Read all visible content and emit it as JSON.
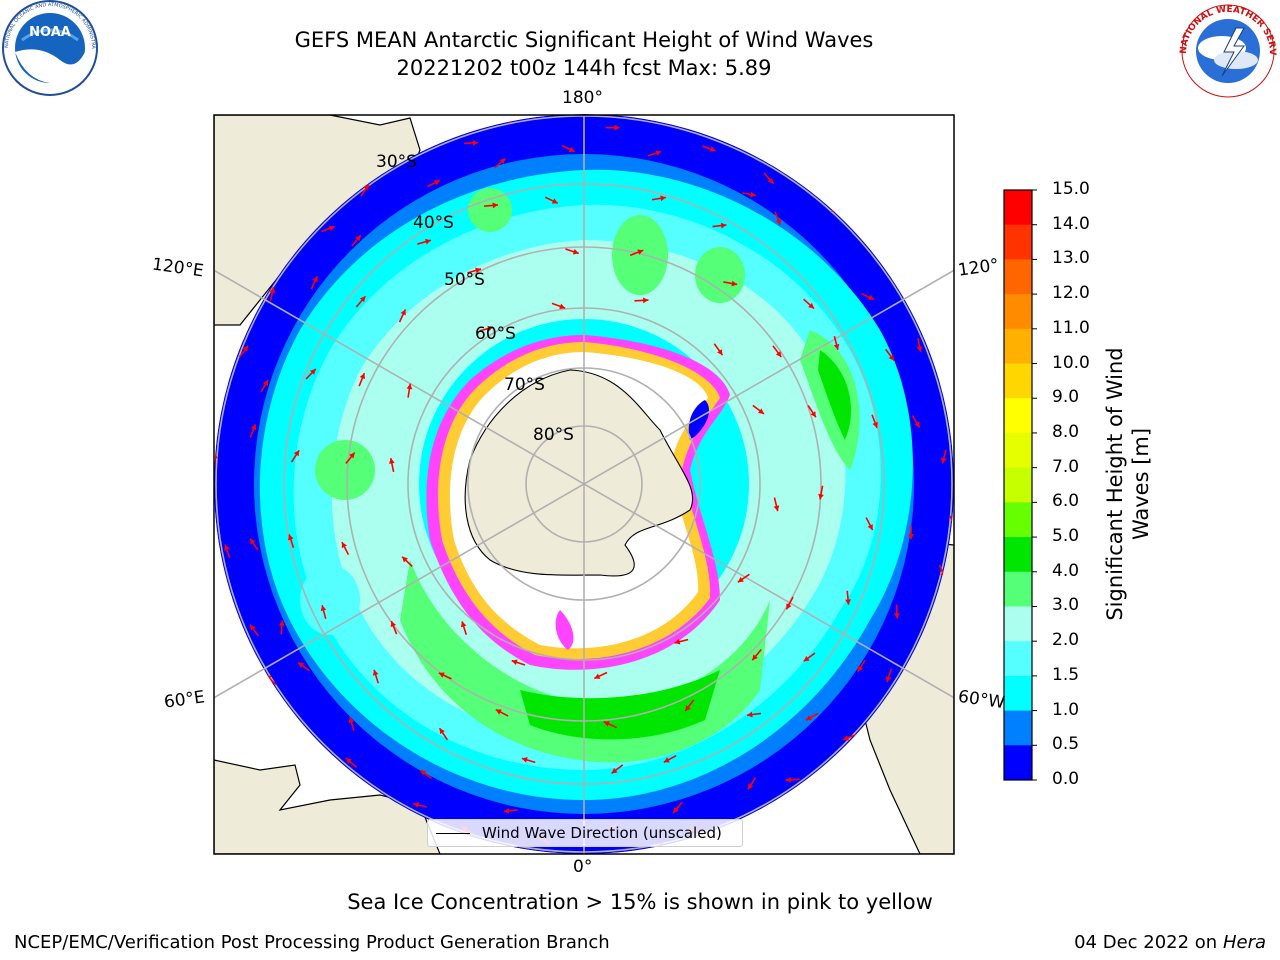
{
  "title": {
    "line1": "GEFS MEAN Antarctic Significant Height of Wind Waves",
    "line2": "20221202 t00z 144h fcst   Max: 5.89"
  },
  "logos": {
    "left": "NOAA",
    "left_ring": "NATIONAL OCEANIC AND ATMOSPHERIC ADMINISTRATION · U.S. DEPARTMENT OF COMMERCE",
    "right_ring": "NATIONAL WEATHER SERVICE"
  },
  "map": {
    "longitude_labels": {
      "top": "180°",
      "bottom": "0°",
      "upper_left": "120°E",
      "lower_left": "60°E",
      "upper_right": "120°",
      "lower_right": "60°W"
    },
    "latitude_labels": [
      "30°S",
      "40°S",
      "50°S",
      "60°S",
      "70°S",
      "80°S"
    ],
    "arrow_color": "#ff0000",
    "land_color": "#efebd9"
  },
  "colorbar": {
    "ticks": [
      "15.0",
      "14.0",
      "13.0",
      "12.0",
      "11.0",
      "10.0",
      "9.0",
      "8.0",
      "7.0",
      "6.0",
      "5.0",
      "4.0",
      "3.0",
      "2.0",
      "1.5",
      "1.0",
      "0.5",
      "0.0"
    ],
    "colors": [
      "#ff0000",
      "#ff3300",
      "#ff6600",
      "#ff8c00",
      "#ffb000",
      "#ffd700",
      "#ffff00",
      "#e6ff00",
      "#c6ff00",
      "#66ff00",
      "#00e600",
      "#55ff77",
      "#aaffee",
      "#55ffff",
      "#00ffff",
      "#0080ff",
      "#0000ff"
    ],
    "label_line1": "Significant Height of Wind",
    "label_line2": "Waves [m]"
  },
  "legend": {
    "label": "Wind Wave Direction (unscaled)"
  },
  "footer": {
    "note": "Sea Ice Concentration > 15% is shown in pink to yellow",
    "credit": "NCEP/EMC/Verification Post Processing Product Generation Branch",
    "date": "04 Dec 2022 on",
    "machine": "Hera"
  }
}
